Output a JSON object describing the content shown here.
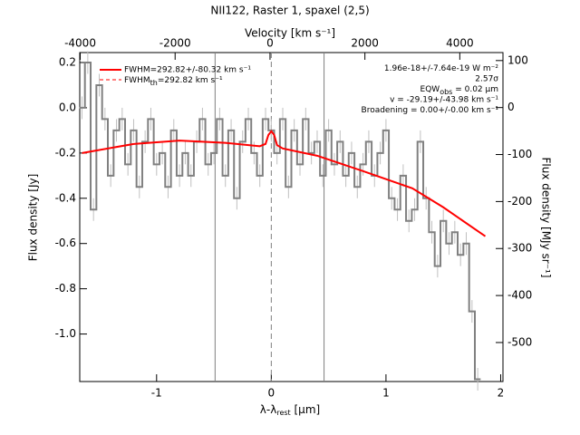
{
  "chart_data": {
    "type": "step",
    "title": "NII122, Raster 1, spaxel (2,5)",
    "xlabel": [
      {
        "text": "λ-λ"
      },
      {
        "sub": "rest"
      },
      {
        "text": " [μm]"
      }
    ],
    "ylabel": "Flux density [Jy]",
    "x2label": "Velocity [km s⁻¹]",
    "y2label": "Flux density [MJy sr⁻¹]",
    "xlim": [
      -1.67,
      2.02
    ],
    "ylim": [
      -1.21,
      0.244
    ],
    "x2lim": [
      -4010,
      4910
    ],
    "y2lim": [
      -583,
      117
    ],
    "xticks": [
      -1,
      0,
      1,
      2
    ],
    "yticks": [
      0.2,
      {
        "value": 0,
        "label": "0.0"
      },
      -0.2,
      -0.4,
      -0.6,
      -0.8,
      {
        "value": -1,
        "label": "-1.0"
      }
    ],
    "x2ticks": [
      -4000,
      -2000,
      0,
      2000,
      4000
    ],
    "y2ticks": [
      100,
      0,
      -100,
      -200,
      -300,
      -400,
      -500
    ],
    "series": [
      {
        "name": "data",
        "color": "#808080",
        "x": [
          -1.65,
          -1.6,
          -1.55,
          -1.5,
          -1.45,
          -1.4,
          -1.35,
          -1.3,
          -1.25,
          -1.2,
          -1.15,
          -1.1,
          -1.05,
          -1,
          -0.95,
          -0.9,
          -0.85,
          -0.8,
          -0.75,
          -0.7,
          -0.65,
          -0.6,
          -0.55,
          -0.5,
          -0.45,
          -0.4,
          -0.35,
          -0.3,
          -0.25,
          -0.2,
          -0.15,
          -0.1,
          -0.05,
          0,
          0.05,
          0.1,
          0.15,
          0.2,
          0.25,
          0.3,
          0.35,
          0.4,
          0.45,
          0.5,
          0.55,
          0.6,
          0.65,
          0.7,
          0.75,
          0.8,
          0.85,
          0.9,
          0.95,
          1,
          1.05,
          1.1,
          1.15,
          1.2,
          1.25,
          1.3,
          1.35,
          1.4,
          1.45,
          1.5,
          1.55,
          1.6,
          1.65,
          1.7,
          1.75,
          1.8
        ],
        "values": [
          0,
          0.2,
          -0.45,
          0.1,
          -0.05,
          -0.3,
          -0.1,
          -0.05,
          -0.25,
          -0.1,
          -0.35,
          -0.15,
          -0.05,
          -0.25,
          -0.2,
          -0.35,
          -0.1,
          -0.3,
          -0.2,
          -0.3,
          -0.15,
          -0.05,
          -0.25,
          -0.2,
          -0.05,
          -0.3,
          -0.1,
          -0.4,
          -0.15,
          -0.05,
          -0.2,
          -0.3,
          -0.05,
          -0.1,
          -0.2,
          -0.05,
          -0.35,
          -0.1,
          -0.25,
          -0.05,
          -0.2,
          -0.15,
          -0.3,
          -0.1,
          -0.25,
          -0.15,
          -0.3,
          -0.2,
          -0.35,
          -0.25,
          -0.15,
          -0.3,
          -0.2,
          -0.1,
          -0.4,
          -0.45,
          -0.3,
          -0.5,
          -0.45,
          -0.15,
          -0.4,
          -0.55,
          -0.7,
          -0.5,
          -0.6,
          -0.55,
          -0.65,
          -0.6,
          -0.9,
          -1.2
        ],
        "errors": [
          0.05,
          0.05,
          0.05,
          0.05,
          0.05,
          0.05,
          0.05,
          0.05,
          0.05,
          0.05,
          0.05,
          0.05,
          0.05,
          0.05,
          0.05,
          0.05,
          0.05,
          0.05,
          0.05,
          0.05,
          0.05,
          0.05,
          0.05,
          0.05,
          0.05,
          0.05,
          0.05,
          0.05,
          0.05,
          0.05,
          0.05,
          0.05,
          0.05,
          0.05,
          0.05,
          0.05,
          0.05,
          0.05,
          0.05,
          0.05,
          0.05,
          0.05,
          0.05,
          0.05,
          0.05,
          0.05,
          0.05,
          0.05,
          0.05,
          0.05,
          0.05,
          0.05,
          0.05,
          0.05,
          0.05,
          0.05,
          0.05,
          0.05,
          0.05,
          0.05,
          0.05,
          0.05,
          0.05,
          0.05,
          0.05,
          0.05,
          0.05,
          0.05,
          0.05,
          0.05
        ]
      },
      {
        "name": "FWHM=292.82+/-80.32 km s⁻¹",
        "color": "#ff0000",
        "x": [
          -1.65,
          -1.2,
          -0.8,
          -0.4,
          -0.1,
          -0.05,
          -0.025,
          0,
          0.025,
          0.05,
          0.1,
          0.4,
          0.8,
          1.23,
          1.5,
          1.866
        ],
        "values": [
          -0.2,
          -0.16,
          -0.145,
          -0.155,
          -0.17,
          -0.16,
          -0.12,
          -0.104,
          -0.12,
          -0.165,
          -0.18,
          -0.212,
          -0.28,
          -0.356,
          -0.44,
          -0.568
        ]
      }
    ],
    "legend_extra": [
      {
        "text": "FWHM"
      },
      {
        "sub": "th"
      },
      {
        "text": "=292.82 km s⁻¹"
      }
    ],
    "vlines": [
      -0.49,
      0.46
    ],
    "vline_color": "#808080",
    "dashed_vline": 0,
    "annotations": [
      [
        {
          "text": "1.96e-18+/-7.64e-19 W m⁻²"
        }
      ],
      [
        {
          "text": "2.57σ"
        }
      ],
      [
        {
          "text": "EQW"
        },
        {
          "sub": "obs"
        },
        {
          "text": " = 0.02 μm"
        }
      ],
      [
        {
          "text": "v = -29.19+/-43.98 km s⁻¹"
        }
      ],
      [
        {
          "text": "Broadening = 0.00+/-0.00 km s⁻¹"
        }
      ]
    ]
  }
}
